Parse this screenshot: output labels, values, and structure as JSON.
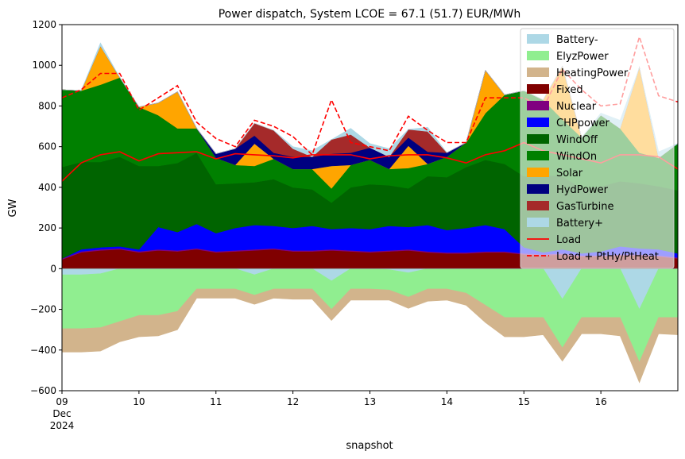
{
  "chart_data": {
    "type": "area",
    "title": "Power dispatch, System LCOE = 67.1 (51.7) EUR/MWh",
    "xlabel": "snapshot",
    "ylabel": "GW",
    "ylim": [
      -600,
      1200
    ],
    "xlim": [
      9,
      17
    ],
    "y_ticks": [
      -600,
      -400,
      -200,
      0,
      200,
      400,
      600,
      800,
      1000,
      1200
    ],
    "x_ticks": [
      {
        "x": 9,
        "labels": [
          "09",
          "Dec",
          "2024"
        ]
      },
      {
        "x": 10,
        "labels": [
          "10"
        ]
      },
      {
        "x": 11,
        "labels": [
          "11"
        ]
      },
      {
        "x": 12,
        "labels": [
          "12"
        ]
      },
      {
        "x": 13,
        "labels": [
          "13"
        ]
      },
      {
        "x": 14,
        "labels": [
          "14"
        ]
      },
      {
        "x": 15,
        "labels": [
          "15"
        ]
      },
      {
        "x": 16,
        "labels": [
          "16"
        ]
      }
    ],
    "grid": false,
    "legend_position": "top-right",
    "x": [
      9.0,
      9.25,
      9.5,
      9.75,
      10.0,
      10.25,
      10.5,
      10.75,
      11.0,
      11.25,
      11.5,
      11.75,
      12.0,
      12.25,
      12.5,
      12.75,
      13.0,
      13.25,
      13.5,
      13.75,
      14.0,
      14.25,
      14.5,
      14.75,
      15.0,
      15.25,
      15.5,
      15.75,
      16.0,
      16.25,
      16.5,
      16.75,
      17.0
    ],
    "positive_series": [
      {
        "name": "Fixed",
        "color": "#800000",
        "values": [
          45,
          80,
          90,
          95,
          80,
          90,
          85,
          95,
          80,
          85,
          90,
          95,
          85,
          85,
          90,
          85,
          80,
          85,
          90,
          80,
          75,
          75,
          80,
          80,
          70,
          65,
          70,
          60,
          60,
          65,
          65,
          60,
          50
        ]
      },
      {
        "name": "Nuclear",
        "color": "#800080",
        "values": [
          5,
          5,
          5,
          5,
          5,
          5,
          5,
          5,
          5,
          5,
          5,
          5,
          5,
          5,
          5,
          5,
          5,
          5,
          5,
          5,
          5,
          5,
          5,
          5,
          5,
          5,
          5,
          5,
          5,
          5,
          5,
          5,
          5
        ]
      },
      {
        "name": "CHPpower",
        "color": "#0000ff",
        "values": [
          0,
          10,
          10,
          10,
          10,
          110,
          90,
          120,
          90,
          110,
          120,
          110,
          110,
          120,
          100,
          110,
          110,
          120,
          110,
          130,
          110,
          120,
          130,
          110,
          30,
          10,
          20,
          10,
          20,
          40,
          30,
          30,
          20
        ]
      },
      {
        "name": "WindOff",
        "color": "#006400",
        "values": [
          450,
          430,
          420,
          440,
          410,
          300,
          340,
          350,
          240,
          220,
          210,
          230,
          200,
          180,
          130,
          200,
          220,
          200,
          190,
          240,
          260,
          300,
          320,
          320,
          350,
          380,
          360,
          320,
          320,
          320,
          320,
          310,
          310
        ]
      },
      {
        "name": "WindOn",
        "color": "#008000",
        "values": [
          380,
          350,
          380,
          390,
          290,
          250,
          170,
          120,
          130,
          90,
          80,
          100,
          90,
          100,
          70,
          110,
          120,
          80,
          100,
          60,
          100,
          120,
          230,
          340,
          420,
          370,
          280,
          250,
          350,
          260,
          150,
          140,
          230
        ]
      },
      {
        "name": "Solar",
        "color": "#ffa500",
        "values": [
          0,
          0,
          190,
          0,
          0,
          60,
          180,
          0,
          0,
          0,
          110,
          0,
          0,
          0,
          110,
          0,
          0,
          0,
          110,
          0,
          0,
          0,
          210,
          0,
          0,
          0,
          260,
          0,
          0,
          0,
          420,
          0,
          0
        ]
      },
      {
        "name": "HydPower",
        "color": "#000080",
        "values": [
          0,
          0,
          0,
          0,
          0,
          0,
          0,
          0,
          20,
          80,
          40,
          30,
          60,
          60,
          60,
          60,
          60,
          60,
          40,
          60,
          20,
          0,
          0,
          0,
          0,
          0,
          0,
          0,
          0,
          0,
          0,
          0,
          0
        ]
      },
      {
        "name": "GasTurbine",
        "color": "#a52a2a",
        "values": [
          0,
          0,
          0,
          0,
          0,
          0,
          0,
          0,
          0,
          0,
          60,
          110,
          40,
          0,
          70,
          90,
          0,
          0,
          40,
          100,
          0,
          0,
          0,
          0,
          0,
          0,
          0,
          0,
          0,
          0,
          0,
          0,
          0
        ]
      },
      {
        "name": "Battery+",
        "color": "#add8e6",
        "values": [
          0,
          0,
          15,
          0,
          0,
          0,
          0,
          0,
          0,
          0,
          0,
          0,
          10,
          30,
          0,
          30,
          20,
          40,
          0,
          20,
          0,
          0,
          0,
          0,
          0,
          0,
          0,
          0,
          10,
          40,
          0,
          30,
          0
        ]
      }
    ],
    "negative_series": [
      {
        "name": "Battery-",
        "color": "#add8e6",
        "values": [
          -30,
          -30,
          -25,
          0,
          0,
          0,
          0,
          0,
          0,
          0,
          -30,
          0,
          0,
          0,
          -60,
          0,
          0,
          -5,
          -20,
          0,
          0,
          0,
          0,
          0,
          0,
          0,
          -150,
          0,
          0,
          0,
          -200,
          0,
          0
        ]
      },
      {
        "name": "ElyzPower",
        "color": "#90ee90",
        "values": [
          -265,
          -265,
          -265,
          -260,
          -230,
          -230,
          -210,
          -100,
          -100,
          -100,
          -100,
          -100,
          -100,
          -100,
          -140,
          -100,
          -100,
          -100,
          -120,
          -100,
          -100,
          -120,
          -180,
          -240,
          -240,
          -240,
          -240,
          -240,
          -240,
          -240,
          -260,
          -240,
          -240
        ]
      },
      {
        "name": "HeatingPower",
        "color": "#d2b48c",
        "values": [
          -115,
          -115,
          -115,
          -100,
          -105,
          -100,
          -90,
          -45,
          -45,
          -45,
          -45,
          -45,
          -50,
          -50,
          -55,
          -55,
          -55,
          -50,
          -55,
          -60,
          -55,
          -60,
          -85,
          -95,
          -95,
          -85,
          -65,
          -80,
          -80,
          -90,
          -100,
          -80,
          -85
        ]
      }
    ],
    "lines": [
      {
        "name": "Load",
        "color": "#ff0000",
        "style": "solid",
        "values": [
          430,
          520,
          560,
          575,
          530,
          565,
          570,
          575,
          540,
          565,
          560,
          555,
          545,
          560,
          560,
          560,
          540,
          555,
          560,
          560,
          545,
          520,
          560,
          580,
          620,
          580,
          560,
          540,
          520,
          560,
          560,
          550,
          490
        ]
      },
      {
        "name": "Load + PtHy/PtHeat",
        "color": "#ff0000",
        "style": "dashed",
        "values": [
          840,
          880,
          960,
          960,
          780,
          840,
          900,
          720,
          640,
          600,
          730,
          700,
          650,
          560,
          830,
          620,
          600,
          580,
          750,
          680,
          620,
          620,
          840,
          840,
          840,
          790,
          980,
          880,
          800,
          810,
          1140,
          850,
          820
        ]
      }
    ],
    "legend_entries": [
      "Battery-",
      "ElyzPower",
      "HeatingPower",
      "Fixed",
      "Nuclear",
      "CHPpower",
      "WindOff",
      "WindOn",
      "Solar",
      "HydPower",
      "GasTurbine",
      "Battery+",
      "Load",
      "Load + PtHy/PtHeat"
    ]
  }
}
